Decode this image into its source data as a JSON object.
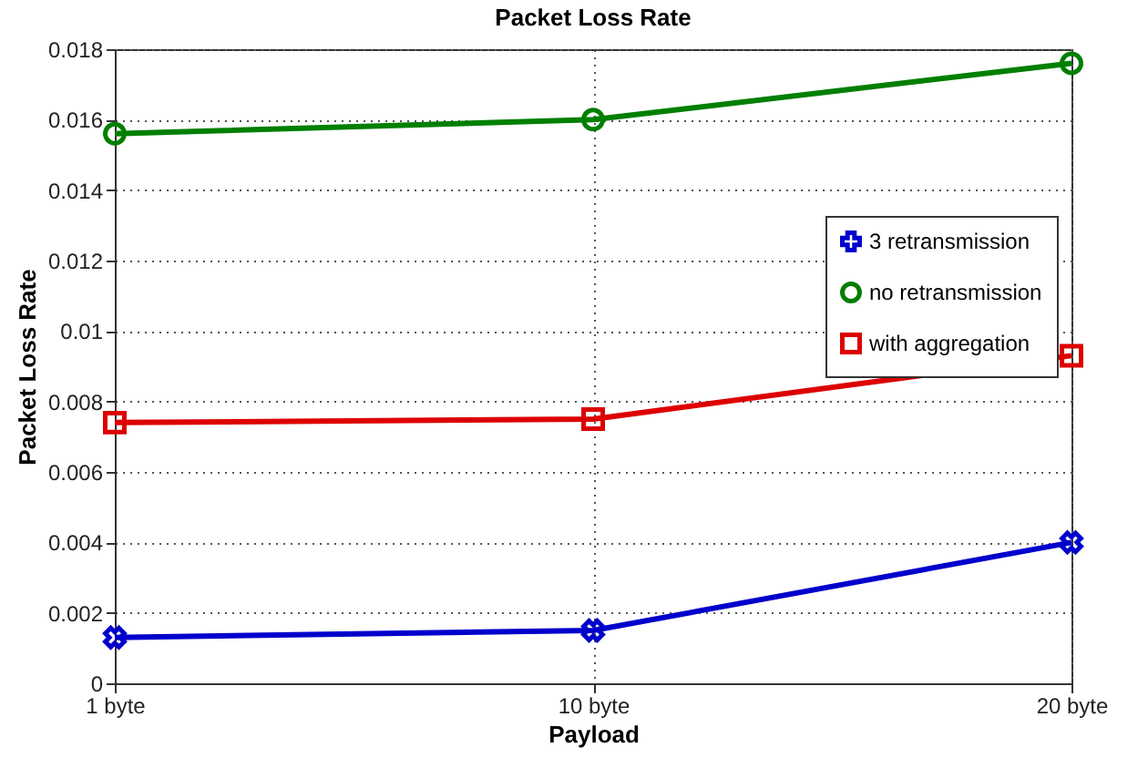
{
  "chart_data": {
    "type": "line",
    "title": "Packet Loss Rate",
    "xlabel": "Payload",
    "ylabel": "Packet Loss Rate",
    "categories": [
      "1 byte",
      "10 byte",
      "20 byte"
    ],
    "series": [
      {
        "name": "3 retransmission",
        "color": "#0000cc",
        "marker": "cross",
        "values": [
          0.0013,
          0.0015,
          0.004
        ]
      },
      {
        "name": "no retransmission",
        "color": "#007f00",
        "marker": "circle",
        "values": [
          0.0156,
          0.016,
          0.0176
        ]
      },
      {
        "name": "with aggregation",
        "color": "#dd0000",
        "marker": "square",
        "values": [
          0.0074,
          0.0075,
          0.0093
        ]
      }
    ],
    "ylim": [
      0,
      0.018
    ],
    "yticks": [
      0,
      0.002,
      0.004,
      0.006,
      0.008,
      {
        "value": 0.01,
        "label": "0.01"
      },
      0.012,
      0.014,
      0.016,
      0.018
    ],
    "grid": true,
    "legend": "right",
    "line_style": "solid"
  }
}
